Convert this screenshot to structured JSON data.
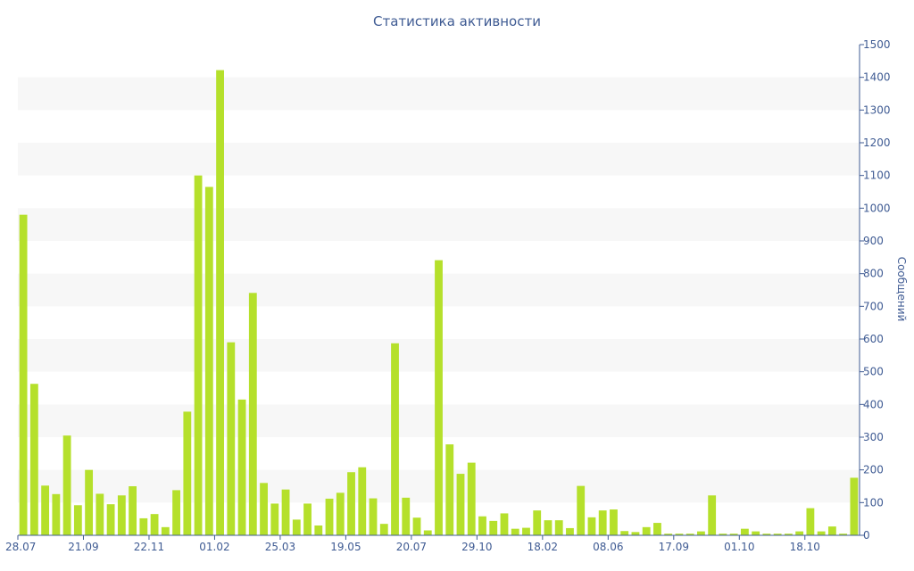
{
  "chart_data": {
    "type": "bar",
    "title": "Статистика активности",
    "ylabel": "Сообщений",
    "xlabel": "",
    "ylim": [
      0,
      1500
    ],
    "y_ticks": [
      0,
      100,
      200,
      300,
      400,
      500,
      600,
      700,
      800,
      900,
      1000,
      1100,
      1200,
      1300,
      1400,
      1500
    ],
    "x_tick_labels": [
      "28.07",
      "21.09",
      "22.11",
      "01.02",
      "25.03",
      "19.05",
      "20.07",
      "29.10",
      "18.02",
      "08.06",
      "17.09",
      "01.10",
      "18.10"
    ],
    "x_tick_bar_index": [
      0,
      6,
      12,
      18,
      24,
      30,
      36,
      42,
      48,
      54,
      60,
      66,
      72
    ],
    "y_axis_side": "right",
    "grid": "alternating horizontal bands",
    "bar_color": "#b5e02b",
    "values": [
      980,
      463,
      152,
      126,
      305,
      92,
      200,
      127,
      95,
      122,
      150,
      52,
      65,
      25,
      138,
      378,
      1100,
      1065,
      1422,
      590,
      415,
      741,
      160,
      97,
      140,
      48,
      97,
      30,
      112,
      130,
      193,
      208,
      113,
      35,
      587,
      115,
      54,
      15,
      841,
      278,
      188,
      222,
      58,
      44,
      67,
      20,
      23,
      76,
      46,
      46,
      22,
      151,
      55,
      76,
      79,
      13,
      10,
      25,
      38,
      5,
      5,
      5,
      12,
      122,
      5,
      5,
      20,
      12,
      5,
      5,
      5,
      12,
      83,
      12,
      27,
      5,
      176
    ]
  }
}
